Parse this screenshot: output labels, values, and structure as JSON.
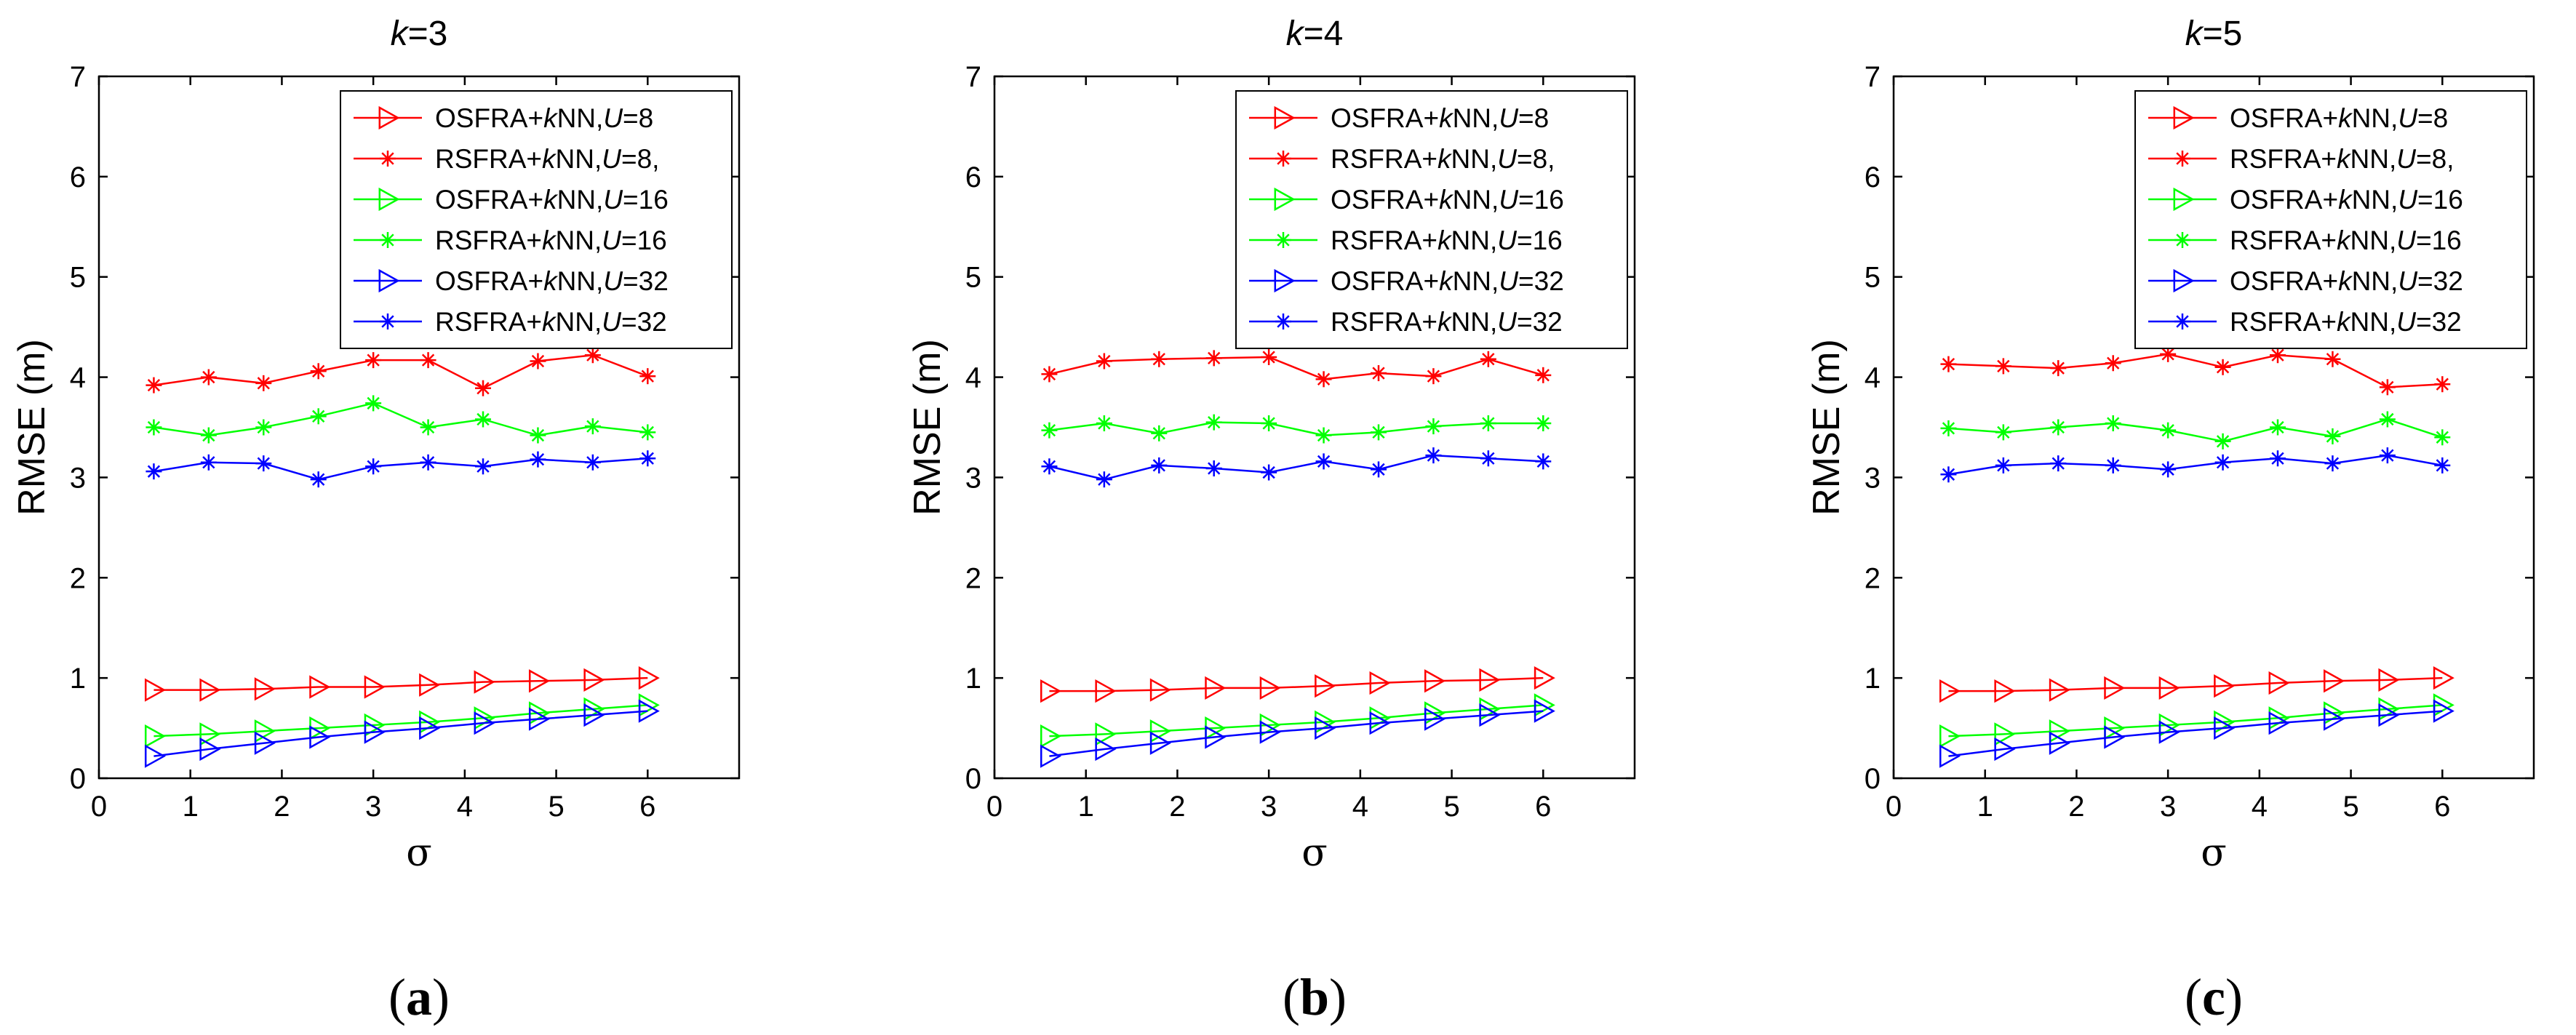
{
  "chart_data": [
    {
      "type": "line",
      "title": "k=3",
      "title_parts": {
        "var": "k",
        "rest": "=3"
      },
      "xlabel": "σ",
      "ylabel": "RMSE (m)",
      "xlim": [
        0,
        7
      ],
      "ylim": [
        0,
        7
      ],
      "xticks": [
        0,
        1,
        2,
        3,
        4,
        5,
        6
      ],
      "yticks": [
        0,
        1,
        2,
        3,
        4,
        5,
        6,
        7
      ],
      "caption": {
        "open": "(",
        "letter": "a",
        "close": ")"
      },
      "x": [
        0.6,
        1.2,
        1.8,
        2.4,
        3.0,
        3.6,
        4.2,
        4.8,
        5.4,
        6.0
      ],
      "series": [
        {
          "name": "OSFRA+kNN,U=8",
          "label": {
            "pre": "OSFRA+",
            "k": "k",
            "mid": "NN,",
            "u": "U",
            "post": "=8"
          },
          "color": "#ff0000",
          "marker": "triangle-right",
          "values": [
            0.88,
            0.88,
            0.89,
            0.91,
            0.91,
            0.93,
            0.96,
            0.97,
            0.98,
            1.0
          ]
        },
        {
          "name": "RSFRA+kNN,U=8,",
          "label": {
            "pre": "RSFRA+",
            "k": "k",
            "mid": "NN,",
            "u": "U",
            "post": "=8,"
          },
          "color": "#ff0000",
          "marker": "asterisk",
          "values": [
            3.92,
            4.0,
            3.94,
            4.06,
            4.17,
            4.17,
            3.89,
            4.16,
            4.22,
            4.01
          ]
        },
        {
          "name": "OSFRA+kNN,U=16",
          "label": {
            "pre": "OSFRA+",
            "k": "k",
            "mid": "NN,",
            "u": "U",
            "post": "=16"
          },
          "color": "#00ff00",
          "marker": "triangle-right",
          "values": [
            0.42,
            0.44,
            0.47,
            0.5,
            0.53,
            0.56,
            0.6,
            0.65,
            0.69,
            0.73
          ]
        },
        {
          "name": "RSFRA+kNN,U=16",
          "label": {
            "pre": "RSFRA+",
            "k": "k",
            "mid": "NN,",
            "u": "U",
            "post": "=16"
          },
          "color": "#00ff00",
          "marker": "asterisk",
          "values": [
            3.5,
            3.42,
            3.5,
            3.61,
            3.74,
            3.5,
            3.58,
            3.42,
            3.51,
            3.45
          ]
        },
        {
          "name": "OSFRA+kNN,U=32",
          "label": {
            "pre": "OSFRA+",
            "k": "k",
            "mid": "NN,",
            "u": "U",
            "post": "=32"
          },
          "color": "#0000ff",
          "marker": "triangle-right",
          "values": [
            0.22,
            0.29,
            0.35,
            0.41,
            0.46,
            0.5,
            0.55,
            0.59,
            0.63,
            0.67
          ]
        },
        {
          "name": "RSFRA+kNN,U=32",
          "label": {
            "pre": "RSFRA+",
            "k": "k",
            "mid": "NN,",
            "u": "U",
            "post": "=32"
          },
          "color": "#0000ff",
          "marker": "asterisk",
          "values": [
            3.06,
            3.15,
            3.14,
            2.98,
            3.11,
            3.15,
            3.11,
            3.18,
            3.15,
            3.19
          ]
        }
      ]
    },
    {
      "type": "line",
      "title": "k=4",
      "title_parts": {
        "var": "k",
        "rest": "=4"
      },
      "xlabel": "σ",
      "ylabel": "RMSE (m)",
      "xlim": [
        0,
        7
      ],
      "ylim": [
        0,
        7
      ],
      "xticks": [
        0,
        1,
        2,
        3,
        4,
        5,
        6
      ],
      "yticks": [
        0,
        1,
        2,
        3,
        4,
        5,
        6,
        7
      ],
      "caption": {
        "open": "(",
        "letter": "b",
        "close": ")"
      },
      "x": [
        0.6,
        1.2,
        1.8,
        2.4,
        3.0,
        3.6,
        4.2,
        4.8,
        5.4,
        6.0
      ],
      "series": [
        {
          "name": "OSFRA+kNN,U=8",
          "label": {
            "pre": "OSFRA+",
            "k": "k",
            "mid": "NN,",
            "u": "U",
            "post": "=8"
          },
          "color": "#ff0000",
          "marker": "triangle-right",
          "values": [
            0.87,
            0.87,
            0.88,
            0.9,
            0.9,
            0.92,
            0.95,
            0.97,
            0.98,
            1.0
          ]
        },
        {
          "name": "RSFRA+kNN,U=8,",
          "label": {
            "pre": "RSFRA+",
            "k": "k",
            "mid": "NN,",
            "u": "U",
            "post": "=8,"
          },
          "color": "#ff0000",
          "marker": "asterisk",
          "values": [
            4.03,
            4.16,
            4.18,
            4.19,
            4.2,
            3.98,
            4.04,
            4.01,
            4.18,
            4.02
          ]
        },
        {
          "name": "OSFRA+kNN,U=16",
          "label": {
            "pre": "OSFRA+",
            "k": "k",
            "mid": "NN,",
            "u": "U",
            "post": "=16"
          },
          "color": "#00ff00",
          "marker": "triangle-right",
          "values": [
            0.42,
            0.44,
            0.47,
            0.5,
            0.53,
            0.56,
            0.6,
            0.65,
            0.69,
            0.73
          ]
        },
        {
          "name": "RSFRA+kNN,U=16",
          "label": {
            "pre": "RSFRA+",
            "k": "k",
            "mid": "NN,",
            "u": "U",
            "post": "=16"
          },
          "color": "#00ff00",
          "marker": "asterisk",
          "values": [
            3.47,
            3.54,
            3.44,
            3.55,
            3.54,
            3.42,
            3.45,
            3.51,
            3.54,
            3.54
          ]
        },
        {
          "name": "OSFRA+kNN,U=32",
          "label": {
            "pre": "OSFRA+",
            "k": "k",
            "mid": "NN,",
            "u": "U",
            "post": "=32"
          },
          "color": "#0000ff",
          "marker": "triangle-right",
          "values": [
            0.22,
            0.29,
            0.35,
            0.41,
            0.46,
            0.5,
            0.55,
            0.59,
            0.63,
            0.67
          ]
        },
        {
          "name": "RSFRA+kNN,U=32",
          "label": {
            "pre": "RSFRA+",
            "k": "k",
            "mid": "NN,",
            "u": "U",
            "post": "=32"
          },
          "color": "#0000ff",
          "marker": "asterisk",
          "values": [
            3.11,
            2.98,
            3.12,
            3.09,
            3.05,
            3.16,
            3.08,
            3.22,
            3.19,
            3.16
          ]
        }
      ]
    },
    {
      "type": "line",
      "title": "k=5",
      "title_parts": {
        "var": "k",
        "rest": "=5"
      },
      "xlabel": "σ",
      "ylabel": "RMSE (m)",
      "xlim": [
        0,
        7
      ],
      "ylim": [
        0,
        7
      ],
      "xticks": [
        0,
        1,
        2,
        3,
        4,
        5,
        6
      ],
      "yticks": [
        0,
        1,
        2,
        3,
        4,
        5,
        6,
        7
      ],
      "caption": {
        "open": "(",
        "letter": "c",
        "close": ")"
      },
      "x": [
        0.6,
        1.2,
        1.8,
        2.4,
        3.0,
        3.6,
        4.2,
        4.8,
        5.4,
        6.0
      ],
      "series": [
        {
          "name": "OSFRA+kNN,U=8",
          "label": {
            "pre": "OSFRA+",
            "k": "k",
            "mid": "NN,",
            "u": "U",
            "post": "=8"
          },
          "color": "#ff0000",
          "marker": "triangle-right",
          "values": [
            0.87,
            0.87,
            0.88,
            0.9,
            0.9,
            0.92,
            0.95,
            0.97,
            0.98,
            1.0
          ]
        },
        {
          "name": "RSFRA+kNN,U=8,",
          "label": {
            "pre": "RSFRA+",
            "k": "k",
            "mid": "NN,",
            "u": "U",
            "post": "=8,"
          },
          "color": "#ff0000",
          "marker": "asterisk",
          "values": [
            4.13,
            4.11,
            4.09,
            4.14,
            4.23,
            4.1,
            4.22,
            4.18,
            3.9,
            3.93
          ]
        },
        {
          "name": "OSFRA+kNN,U=16",
          "label": {
            "pre": "OSFRA+",
            "k": "k",
            "mid": "NN,",
            "u": "U",
            "post": "=16"
          },
          "color": "#00ff00",
          "marker": "triangle-right",
          "values": [
            0.42,
            0.44,
            0.47,
            0.5,
            0.53,
            0.56,
            0.6,
            0.65,
            0.69,
            0.73
          ]
        },
        {
          "name": "RSFRA+kNN,U=16",
          "label": {
            "pre": "RSFRA+",
            "k": "k",
            "mid": "NN,",
            "u": "U",
            "post": "=16"
          },
          "color": "#00ff00",
          "marker": "asterisk",
          "values": [
            3.49,
            3.45,
            3.5,
            3.54,
            3.47,
            3.36,
            3.5,
            3.41,
            3.58,
            3.4
          ]
        },
        {
          "name": "OSFRA+kNN,U=32",
          "label": {
            "pre": "OSFRA+",
            "k": "k",
            "mid": "NN,",
            "u": "U",
            "post": "=32"
          },
          "color": "#0000ff",
          "marker": "triangle-right",
          "values": [
            0.22,
            0.29,
            0.35,
            0.41,
            0.46,
            0.5,
            0.55,
            0.59,
            0.63,
            0.67
          ]
        },
        {
          "name": "RSFRA+kNN,U=32",
          "label": {
            "pre": "RSFRA+",
            "k": "k",
            "mid": "NN,",
            "u": "U",
            "post": "=32"
          },
          "color": "#0000ff",
          "marker": "asterisk",
          "values": [
            3.03,
            3.12,
            3.14,
            3.12,
            3.08,
            3.15,
            3.19,
            3.14,
            3.22,
            3.12
          ]
        }
      ]
    }
  ]
}
